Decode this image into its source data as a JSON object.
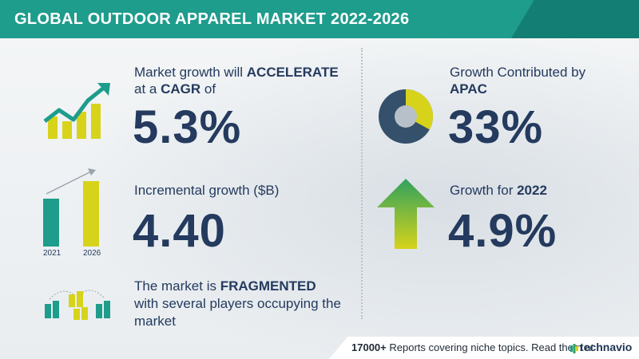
{
  "header": {
    "title": "GLOBAL OUTDOOR APPAREL MARKET 2022-2026"
  },
  "stats": {
    "cagr": {
      "line1_prefix": "Market growth will ",
      "line1_bold": "ACCELERATE",
      "line2_prefix": "at a ",
      "line2_bold": "CAGR",
      "line2_suffix": " of",
      "value": "5.3%"
    },
    "incremental": {
      "label": "Incremental growth ($B)",
      "value": "4.40",
      "year_start": "2021",
      "year_end": "2026"
    },
    "fragmented": {
      "line1_prefix": "The market is ",
      "line1_bold": "FRAGMENTED",
      "line2": "with several players occupying the",
      "line3": "market"
    },
    "region": {
      "line1": "Growth Contributed by",
      "line2": "APAC",
      "value": "33%",
      "share": 0.33
    },
    "yoy": {
      "label_prefix": "Growth for ",
      "label_bold": "2022",
      "value": "4.9%"
    }
  },
  "footer": {
    "count": "17000+",
    "text": " Reports covering niche topics. Read them at",
    "brand": "technavio"
  },
  "colors": {
    "teal": "#1e9c8c",
    "navy": "#243a5e",
    "yellow": "#d7d31a",
    "arrow_green": "#2fa15e"
  }
}
